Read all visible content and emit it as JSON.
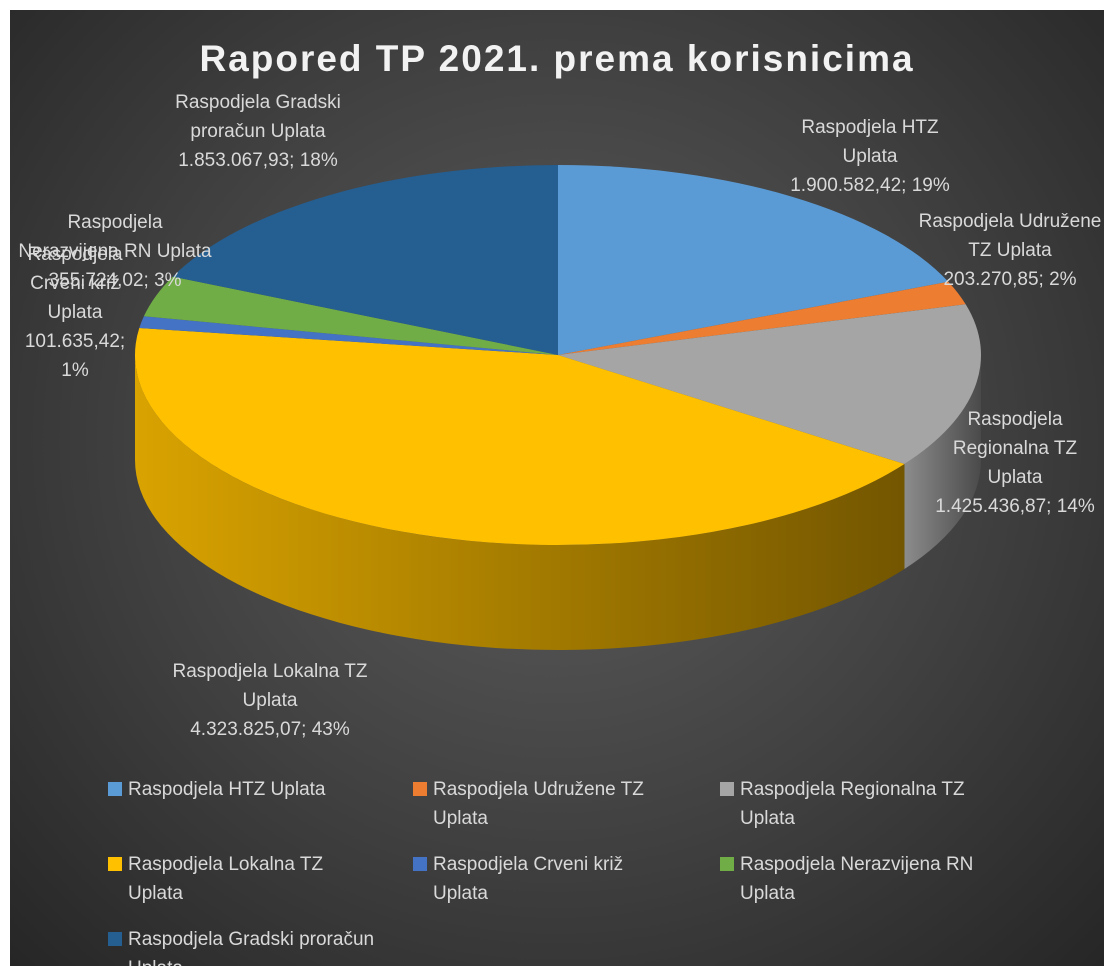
{
  "chart_data": {
    "type": "pie",
    "title": "Rapored TP 2021. prema korisnicima",
    "categories": [
      "Raspodjela HTZ Uplata",
      "Raspodjela Udružene TZ Uplata",
      "Raspodjela Regionalna TZ Uplata",
      "Raspodjela Lokalna TZ Uplata",
      "Raspodjela Crveni križ Uplata",
      "Raspodjela Nerazvijena RN Uplata",
      "Raspodjela Gradski proračun Uplata"
    ],
    "values": [
      1900582.42,
      203270.85,
      1425436.87,
      4323825.07,
      101635.42,
      355724.02,
      1853067.93
    ],
    "value_labels": [
      "1.900.582,42; 19%",
      "203.270,85; 2%",
      "1.425.436,87; 14%",
      "4.323.825,07; 43%",
      "101.635,42; 1%",
      "355.724,02; 3%",
      "1.853.067,93; 18%"
    ],
    "colors": [
      "#5b9bd5",
      "#ed7d31",
      "#a5a5a5",
      "#ffc000",
      "#4472c4",
      "#70ad47",
      "#255e91"
    ],
    "legend": "bottom"
  }
}
